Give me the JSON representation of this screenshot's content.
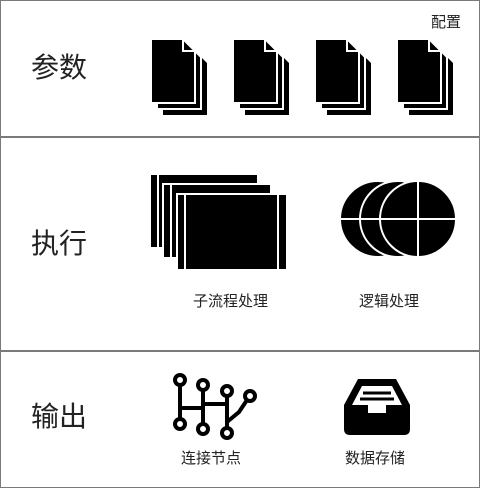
{
  "header": {
    "config_label": "配置"
  },
  "sections": {
    "params": {
      "title": "参数",
      "items": [
        {
          "icon": "document-stack-icon"
        },
        {
          "icon": "document-stack-icon"
        },
        {
          "icon": "document-stack-icon"
        },
        {
          "icon": "document-stack-icon"
        }
      ]
    },
    "exec": {
      "title": "执行",
      "items": [
        {
          "icon": "stacked-frames-icon",
          "label": "子流程处理"
        },
        {
          "icon": "overlapping-circles-icon",
          "label": "逻辑处理"
        }
      ]
    },
    "output": {
      "title": "输出",
      "items": [
        {
          "icon": "circuit-nodes-icon",
          "label": "连接节点"
        },
        {
          "icon": "inbox-tray-icon",
          "label": "数据存储"
        }
      ]
    }
  }
}
